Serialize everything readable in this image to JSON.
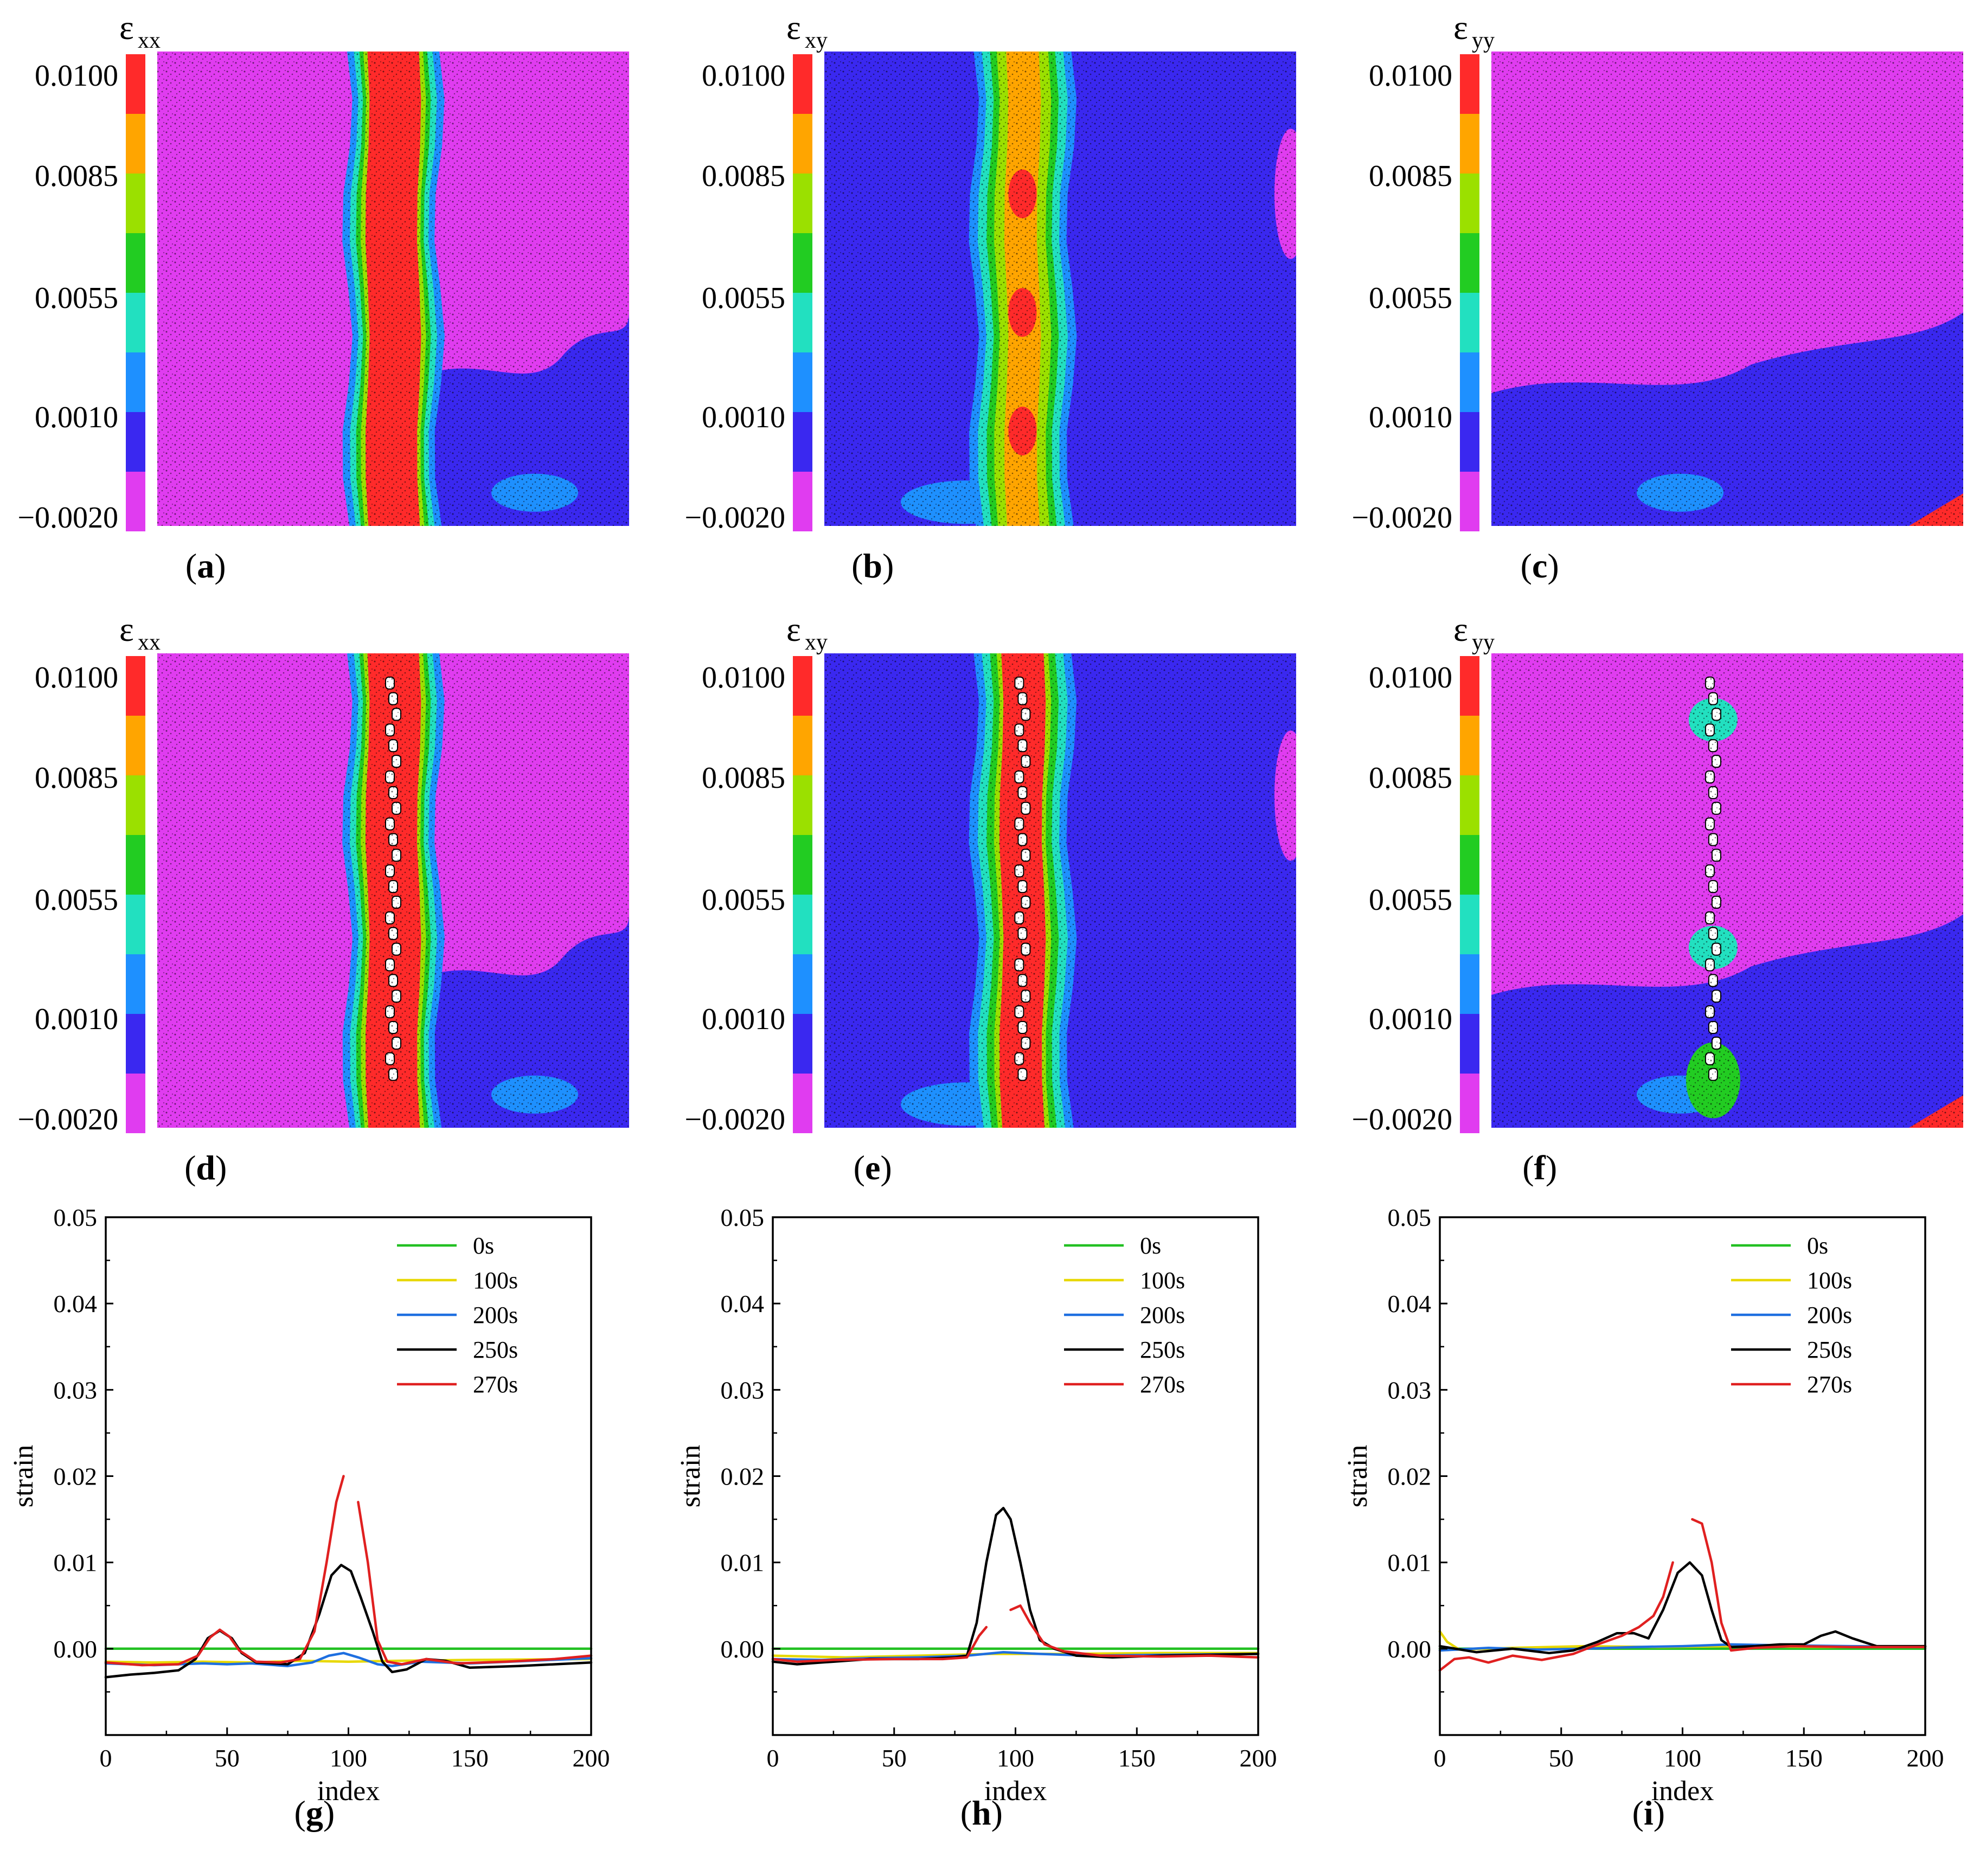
{
  "colormap": {
    "colors": [
      "#ff2a2a",
      "#ffa500",
      "#9be000",
      "#22cc22",
      "#22e0c0",
      "#1e90ff",
      "#3a28f0",
      "#e03cf0"
    ],
    "tick_labels": [
      "0.0100",
      "0.0085",
      "0.0055",
      "0.0010",
      "−0.0020"
    ]
  },
  "heatmaps": [
    {
      "id": "a",
      "caption": "a",
      "symbol": "ε",
      "sub": "xx",
      "variable": "eps_xx",
      "fracture": false
    },
    {
      "id": "b",
      "caption": "b",
      "symbol": "ε",
      "sub": "xy",
      "variable": "eps_xy",
      "fracture": false
    },
    {
      "id": "c",
      "caption": "c",
      "symbol": "ε",
      "sub": "yy",
      "variable": "eps_yy",
      "fracture": false
    },
    {
      "id": "d",
      "caption": "d",
      "symbol": "ε",
      "sub": "xx",
      "variable": "eps_xx",
      "fracture": true
    },
    {
      "id": "e",
      "caption": "e",
      "symbol": "ε",
      "sub": "xy",
      "variable": "eps_xy",
      "fracture": true
    },
    {
      "id": "f",
      "caption": "f",
      "symbol": "ε",
      "sub": "yy",
      "variable": "eps_yy",
      "fracture": true
    }
  ],
  "chart_data": [
    {
      "panel": "g",
      "type": "line",
      "xlabel": "index",
      "ylabel": "strain",
      "xlim": [
        0,
        200
      ],
      "ylim": [
        -0.01,
        0.05
      ],
      "xticks": [
        0,
        50,
        100,
        150,
        200
      ],
      "yticks": [
        0.0,
        0.01,
        0.02,
        0.03,
        0.04,
        0.05
      ],
      "ytick_labels": [
        "0.00",
        "0.01",
        "0.02",
        "0.03",
        "0.04",
        "0.05"
      ],
      "series": [
        {
          "name": "0s",
          "color": "#22c022",
          "points": [
            [
              0,
              0.0
            ],
            [
              200,
              0.0
            ]
          ]
        },
        {
          "name": "100s",
          "color": "#e8d800",
          "points": [
            [
              0,
              -0.0015
            ],
            [
              20,
              -0.0016
            ],
            [
              40,
              -0.0015
            ],
            [
              60,
              -0.0016
            ],
            [
              80,
              -0.0014
            ],
            [
              100,
              -0.0015
            ],
            [
              120,
              -0.0014
            ],
            [
              150,
              -0.0013
            ],
            [
              200,
              -0.0012
            ]
          ]
        },
        {
          "name": "200s",
          "color": "#1e6fe0",
          "points": [
            [
              0,
              -0.0017
            ],
            [
              20,
              -0.0019
            ],
            [
              40,
              -0.0017
            ],
            [
              50,
              -0.0018
            ],
            [
              60,
              -0.0017
            ],
            [
              75,
              -0.002
            ],
            [
              85,
              -0.0016
            ],
            [
              92,
              -0.0008
            ],
            [
              98,
              -0.0005
            ],
            [
              104,
              -0.001
            ],
            [
              112,
              -0.0018
            ],
            [
              118,
              -0.002
            ],
            [
              130,
              -0.0015
            ],
            [
              150,
              -0.0017
            ],
            [
              175,
              -0.0014
            ],
            [
              200,
              -0.0011
            ]
          ]
        },
        {
          "name": "250s",
          "color": "#000000",
          "points": [
            [
              0,
              -0.0033
            ],
            [
              10,
              -0.003
            ],
            [
              20,
              -0.0028
            ],
            [
              30,
              -0.0025
            ],
            [
              37,
              -0.0012
            ],
            [
              42,
              0.0012
            ],
            [
              47,
              0.0021
            ],
            [
              52,
              0.0012
            ],
            [
              56,
              -0.0005
            ],
            [
              62,
              -0.0016
            ],
            [
              75,
              -0.0018
            ],
            [
              82,
              -0.0005
            ],
            [
              88,
              0.004
            ],
            [
              93,
              0.0085
            ],
            [
              97,
              0.0097
            ],
            [
              101,
              0.009
            ],
            [
              105,
              0.006
            ],
            [
              110,
              0.002
            ],
            [
              114,
              -0.0015
            ],
            [
              118,
              -0.0027
            ],
            [
              124,
              -0.0024
            ],
            [
              132,
              -0.0012
            ],
            [
              140,
              -0.0014
            ],
            [
              150,
              -0.0022
            ],
            [
              170,
              -0.002
            ],
            [
              200,
              -0.0016
            ]
          ]
        },
        {
          "name": "270s",
          "color": "#e02020",
          "points": [
            [
              0,
              -0.0016
            ],
            [
              15,
              -0.0019
            ],
            [
              30,
              -0.0018
            ],
            [
              38,
              -0.0008
            ],
            [
              43,
              0.0013
            ],
            [
              47,
              0.0022
            ],
            [
              51,
              0.0014
            ],
            [
              55,
              -0.0002
            ],
            [
              62,
              -0.0015
            ],
            [
              72,
              -0.0016
            ],
            [
              80,
              -0.0012
            ],
            [
              86,
              0.002
            ],
            [
              91,
              0.01
            ],
            [
              95,
              0.017
            ],
            [
              98,
              0.02
            ]
          ]
        },
        {
          "name": "270s",
          "color": "#e02020",
          "legend": false,
          "points": [
            [
              104,
              0.017
            ],
            [
              108,
              0.01
            ],
            [
              112,
              0.001
            ],
            [
              116,
              -0.0015
            ],
            [
              122,
              -0.0018
            ],
            [
              132,
              -0.0012
            ],
            [
              145,
              -0.0017
            ],
            [
              165,
              -0.0015
            ],
            [
              185,
              -0.0012
            ],
            [
              200,
              -0.0008
            ]
          ]
        }
      ]
    },
    {
      "panel": "h",
      "type": "line",
      "xlabel": "index",
      "ylabel": "strain",
      "xlim": [
        0,
        200
      ],
      "ylim": [
        -0.01,
        0.05
      ],
      "xticks": [
        0,
        50,
        100,
        150,
        200
      ],
      "yticks": [
        0.0,
        0.01,
        0.02,
        0.03,
        0.04,
        0.05
      ],
      "ytick_labels": [
        "0.00",
        "0.01",
        "0.02",
        "0.03",
        "0.04",
        "0.05"
      ],
      "series": [
        {
          "name": "0s",
          "color": "#22c022",
          "points": [
            [
              0,
              0.0
            ],
            [
              200,
              0.0
            ]
          ]
        },
        {
          "name": "100s",
          "color": "#e8d800",
          "points": [
            [
              0,
              -0.0008
            ],
            [
              30,
              -0.001
            ],
            [
              60,
              -0.0008
            ],
            [
              90,
              -0.0006
            ],
            [
              120,
              -0.0006
            ],
            [
              160,
              -0.0005
            ],
            [
              200,
              -0.0005
            ]
          ]
        },
        {
          "name": "200s",
          "color": "#1e6fe0",
          "points": [
            [
              0,
              -0.0012
            ],
            [
              20,
              -0.0013
            ],
            [
              40,
              -0.0011
            ],
            [
              60,
              -0.001
            ],
            [
              80,
              -0.0008
            ],
            [
              95,
              -0.0004
            ],
            [
              110,
              -0.0006
            ],
            [
              130,
              -0.0008
            ],
            [
              160,
              -0.0007
            ],
            [
              200,
              -0.0006
            ]
          ]
        },
        {
          "name": "250s",
          "color": "#000000",
          "points": [
            [
              0,
              -0.0015
            ],
            [
              10,
              -0.0018
            ],
            [
              25,
              -0.0015
            ],
            [
              40,
              -0.0012
            ],
            [
              60,
              -0.0012
            ],
            [
              75,
              -0.001
            ],
            [
              80,
              -0.0008
            ],
            [
              84,
              0.003
            ],
            [
              88,
              0.01
            ],
            [
              92,
              0.0155
            ],
            [
              95,
              0.0163
            ],
            [
              98,
              0.015
            ],
            [
              102,
              0.01
            ],
            [
              106,
              0.0045
            ],
            [
              110,
              0.001
            ],
            [
              116,
              0.0
            ],
            [
              125,
              -0.0008
            ],
            [
              140,
              -0.001
            ],
            [
              160,
              -0.0008
            ],
            [
              180,
              -0.0007
            ],
            [
              200,
              -0.0006
            ]
          ]
        },
        {
          "name": "270s",
          "color": "#e02020",
          "points": [
            [
              0,
              -0.0012
            ],
            [
              10,
              -0.0015
            ],
            [
              25,
              -0.0013
            ],
            [
              50,
              -0.0012
            ],
            [
              70,
              -0.0012
            ],
            [
              80,
              -0.001
            ],
            [
              85,
              0.0015
            ],
            [
              88,
              0.0025
            ]
          ]
        },
        {
          "name": "270s",
          "color": "#e02020",
          "legend": false,
          "points": [
            [
              98,
              0.0045
            ],
            [
              102,
              0.005
            ],
            [
              106,
              0.003
            ],
            [
              112,
              0.0005
            ],
            [
              120,
              -0.0003
            ],
            [
              135,
              -0.0008
            ],
            [
              160,
              -0.0009
            ],
            [
              180,
              -0.0008
            ],
            [
              200,
              -0.001
            ]
          ]
        }
      ]
    },
    {
      "panel": "i",
      "type": "line",
      "xlabel": "index",
      "ylabel": "strain",
      "xlim": [
        0,
        200
      ],
      "ylim": [
        -0.01,
        0.05
      ],
      "xticks": [
        0,
        50,
        100,
        150,
        200
      ],
      "yticks": [
        0.0,
        0.01,
        0.02,
        0.03,
        0.04,
        0.05
      ],
      "ytick_labels": [
        "0.00",
        "0.01",
        "0.02",
        "0.03",
        "0.04",
        "0.05"
      ],
      "series": [
        {
          "name": "0s",
          "color": "#22c022",
          "points": [
            [
              0,
              0.0
            ],
            [
              200,
              0.0
            ]
          ]
        },
        {
          "name": "100s",
          "color": "#e8d800",
          "points": [
            [
              0,
              0.002
            ],
            [
              3,
              0.0008
            ],
            [
              8,
              -0.0001
            ],
            [
              30,
              0.0001
            ],
            [
              60,
              0.0003
            ],
            [
              90,
              0.0002
            ],
            [
              120,
              0.0003
            ],
            [
              160,
              0.0002
            ],
            [
              200,
              0.0003
            ]
          ]
        },
        {
          "name": "200s",
          "color": "#1e6fe0",
          "points": [
            [
              0,
              -0.0002
            ],
            [
              20,
              0.0001
            ],
            [
              40,
              -0.0001
            ],
            [
              60,
              0.0
            ],
            [
              80,
              0.0002
            ],
            [
              100,
              0.0003
            ],
            [
              120,
              0.0005
            ],
            [
              140,
              0.0004
            ],
            [
              170,
              0.0003
            ],
            [
              200,
              0.0002
            ]
          ]
        },
        {
          "name": "250s",
          "color": "#000000",
          "points": [
            [
              0,
              0.0003
            ],
            [
              15,
              -0.0004
            ],
            [
              30,
              0.0
            ],
            [
              45,
              -0.0005
            ],
            [
              55,
              -0.0002
            ],
            [
              65,
              0.0008
            ],
            [
              73,
              0.0018
            ],
            [
              80,
              0.0018
            ],
            [
              86,
              0.0012
            ],
            [
              92,
              0.0045
            ],
            [
              98,
              0.0088
            ],
            [
              103,
              0.01
            ],
            [
              108,
              0.0085
            ],
            [
              112,
              0.0045
            ],
            [
              116,
              0.001
            ],
            [
              120,
              0.0002
            ],
            [
              130,
              0.0003
            ],
            [
              140,
              0.0005
            ],
            [
              150,
              0.0005
            ],
            [
              157,
              0.0015
            ],
            [
              163,
              0.002
            ],
            [
              170,
              0.0012
            ],
            [
              180,
              0.0003
            ],
            [
              200,
              0.0003
            ]
          ]
        },
        {
          "name": "270s",
          "color": "#e02020",
          "points": [
            [
              0,
              -0.0025
            ],
            [
              6,
              -0.0012
            ],
            [
              12,
              -0.001
            ],
            [
              20,
              -0.0016
            ],
            [
              30,
              -0.0008
            ],
            [
              42,
              -0.0013
            ],
            [
              55,
              -0.0006
            ],
            [
              65,
              0.0005
            ],
            [
              75,
              0.0015
            ],
            [
              82,
              0.0025
            ],
            [
              88,
              0.0038
            ],
            [
              92,
              0.006
            ],
            [
              96,
              0.01
            ]
          ]
        },
        {
          "name": "270s",
          "color": "#e02020",
          "legend": false,
          "points": [
            [
              104,
              0.015
            ],
            [
              108,
              0.0145
            ],
            [
              112,
              0.01
            ],
            [
              116,
              0.003
            ],
            [
              120,
              -0.0002
            ],
            [
              130,
              0.0001
            ],
            [
              145,
              0.0003
            ],
            [
              170,
              0.0002
            ],
            [
              200,
              0.0002
            ]
          ]
        }
      ]
    }
  ],
  "plot_captions": [
    "g",
    "h",
    "i"
  ]
}
